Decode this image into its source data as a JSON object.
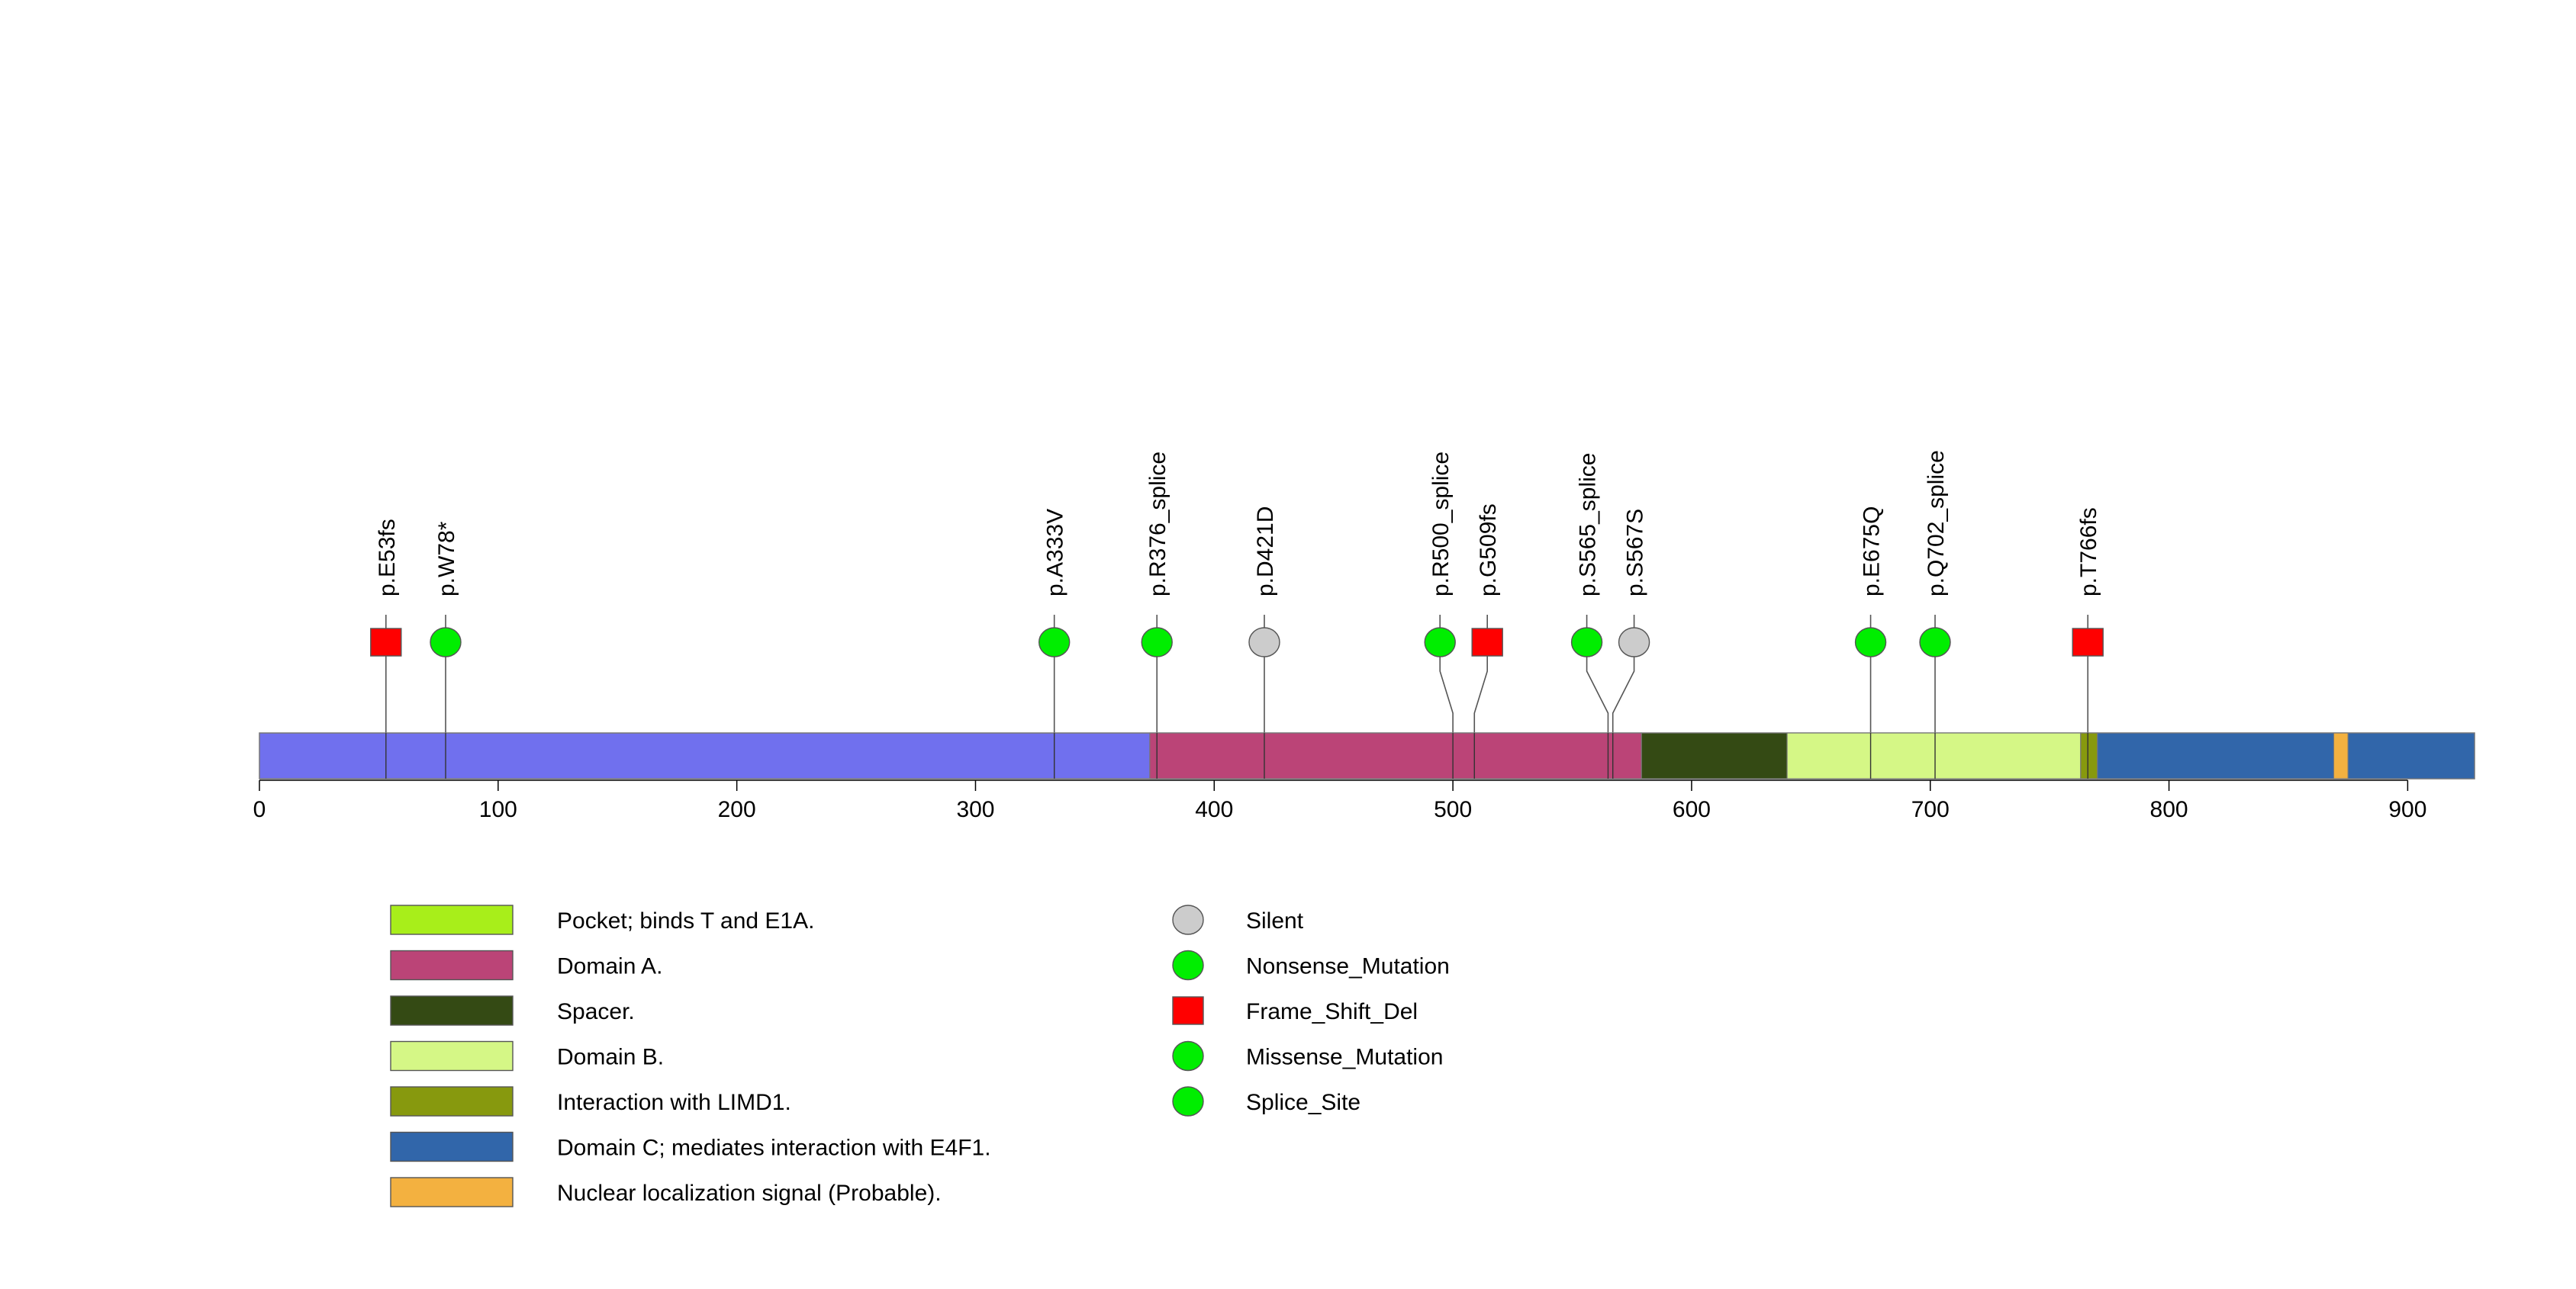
{
  "chart_data": {
    "type": "lollipop",
    "xaxis": {
      "min": 0,
      "max": 928,
      "ticks": [
        0,
        100,
        200,
        300,
        400,
        500,
        600,
        700,
        800,
        900
      ],
      "tick_labels": [
        "0",
        "100",
        "200",
        "300",
        "400",
        "500",
        "600",
        "700",
        "800",
        "900"
      ]
    },
    "protein": {
      "length": 928,
      "base_color": "#7070ee"
    },
    "domains": [
      {
        "name": "Pocket; binds T and E1A.",
        "start": 373,
        "end": 770,
        "color": "#a8ee1a",
        "drawn": false
      },
      {
        "name": "Domain A.",
        "start": 373,
        "end": 579,
        "color": "#bb4477",
        "drawn": true
      },
      {
        "name": "Spacer.",
        "start": 579,
        "end": 640,
        "color": "#344a14",
        "drawn": true
      },
      {
        "name": "Domain B.",
        "start": 640,
        "end": 763,
        "color": "#d5f786",
        "drawn": true
      },
      {
        "name": "Interaction with LIMD1.",
        "start": 763,
        "end": 770,
        "color": "#87990e",
        "drawn": true
      },
      {
        "name": "Domain C; mediates interaction with E4F1.",
        "start": 770,
        "end": 928,
        "color": "#3166aa",
        "drawn": true
      },
      {
        "name": "Nuclear localization signal (Probable).",
        "start": 869,
        "end": 875,
        "color": "#f3b140",
        "drawn": true
      }
    ],
    "mutations": [
      {
        "label": "p.E53fs",
        "pos": 53,
        "type": "Frame_Shift_Del",
        "shape": "square",
        "color": "#ff0000"
      },
      {
        "label": "p.W78*",
        "pos": 78,
        "type": "Nonsense_Mutation",
        "shape": "circle",
        "color": "#00ee00"
      },
      {
        "label": "p.A333V",
        "pos": 333,
        "type": "Missense_Mutation",
        "shape": "circle",
        "color": "#00ee00"
      },
      {
        "label": "p.R376_splice",
        "pos": 376,
        "type": "Splice_Site",
        "shape": "circle",
        "color": "#00ee00"
      },
      {
        "label": "p.D421D",
        "pos": 421,
        "type": "Silent",
        "shape": "circle",
        "color": "#cccccc"
      },
      {
        "label": "p.R500_splice",
        "pos": 500,
        "type": "Splice_Site",
        "shape": "circle",
        "color": "#00ee00"
      },
      {
        "label": "p.G509fs",
        "pos": 509,
        "type": "Frame_Shift_Del",
        "shape": "square",
        "color": "#ff0000"
      },
      {
        "label": "p.S565_splice",
        "pos": 565,
        "type": "Splice_Site",
        "shape": "circle",
        "color": "#00ee00"
      },
      {
        "label": "p.S567S",
        "pos": 567,
        "type": "Silent",
        "shape": "circle",
        "color": "#cccccc"
      },
      {
        "label": "p.E675Q",
        "pos": 675,
        "type": "Missense_Mutation",
        "shape": "circle",
        "color": "#00ee00"
      },
      {
        "label": "p.Q702_splice",
        "pos": 702,
        "type": "Splice_Site",
        "shape": "circle",
        "color": "#00ee00"
      },
      {
        "label": "p.T766fs",
        "pos": 766,
        "type": "Frame_Shift_Del",
        "shape": "square",
        "color": "#ff0000"
      }
    ],
    "legend_mutation_types": [
      {
        "label": "Silent",
        "shape": "circle",
        "color": "#cccccc"
      },
      {
        "label": "Nonsense_Mutation",
        "shape": "circle",
        "color": "#00ee00"
      },
      {
        "label": "Frame_Shift_Del",
        "shape": "square",
        "color": "#ff0000"
      },
      {
        "label": "Missense_Mutation",
        "shape": "circle",
        "color": "#00ee00"
      },
      {
        "label": "Splice_Site",
        "shape": "circle",
        "color": "#00ee00"
      }
    ]
  }
}
